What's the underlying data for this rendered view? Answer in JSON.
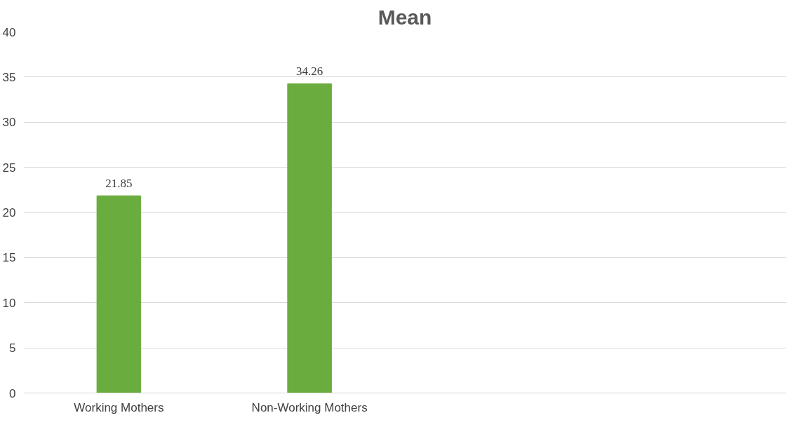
{
  "chart_data": {
    "type": "bar",
    "title": "Mean",
    "categories": [
      "Working Mothers",
      "Non-Working Mothers",
      null,
      null
    ],
    "values": [
      21.85,
      34.26,
      null,
      null
    ],
    "color": "#6aac3e",
    "ylim": [
      0,
      40
    ],
    "yticks": [
      0,
      5,
      10,
      15,
      20,
      25,
      30,
      35,
      40
    ],
    "grid": "y",
    "data_labels": true
  }
}
